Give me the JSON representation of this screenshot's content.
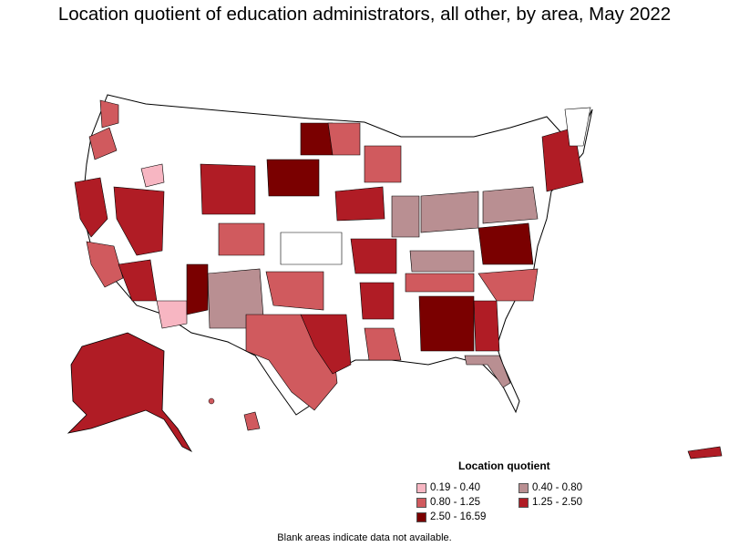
{
  "title": "Location quotient of education administrators, all other, by area, May 2022",
  "legend": {
    "title": "Location quotient",
    "items": [
      {
        "label": "0.19 - 0.40",
        "color": "#f7b6c2"
      },
      {
        "label": "0.40 - 0.80",
        "color": "#b98f92"
      },
      {
        "label": "0.80 - 1.25",
        "color": "#d05a5e"
      },
      {
        "label": "1.25 - 2.50",
        "color": "#b01c25"
      },
      {
        "label": "2.50 - 16.59",
        "color": "#7a0000"
      }
    ]
  },
  "footnote": "Blank areas indicate data not available.",
  "colors": {
    "no_data": "#ffffff",
    "border": "#000000"
  }
}
